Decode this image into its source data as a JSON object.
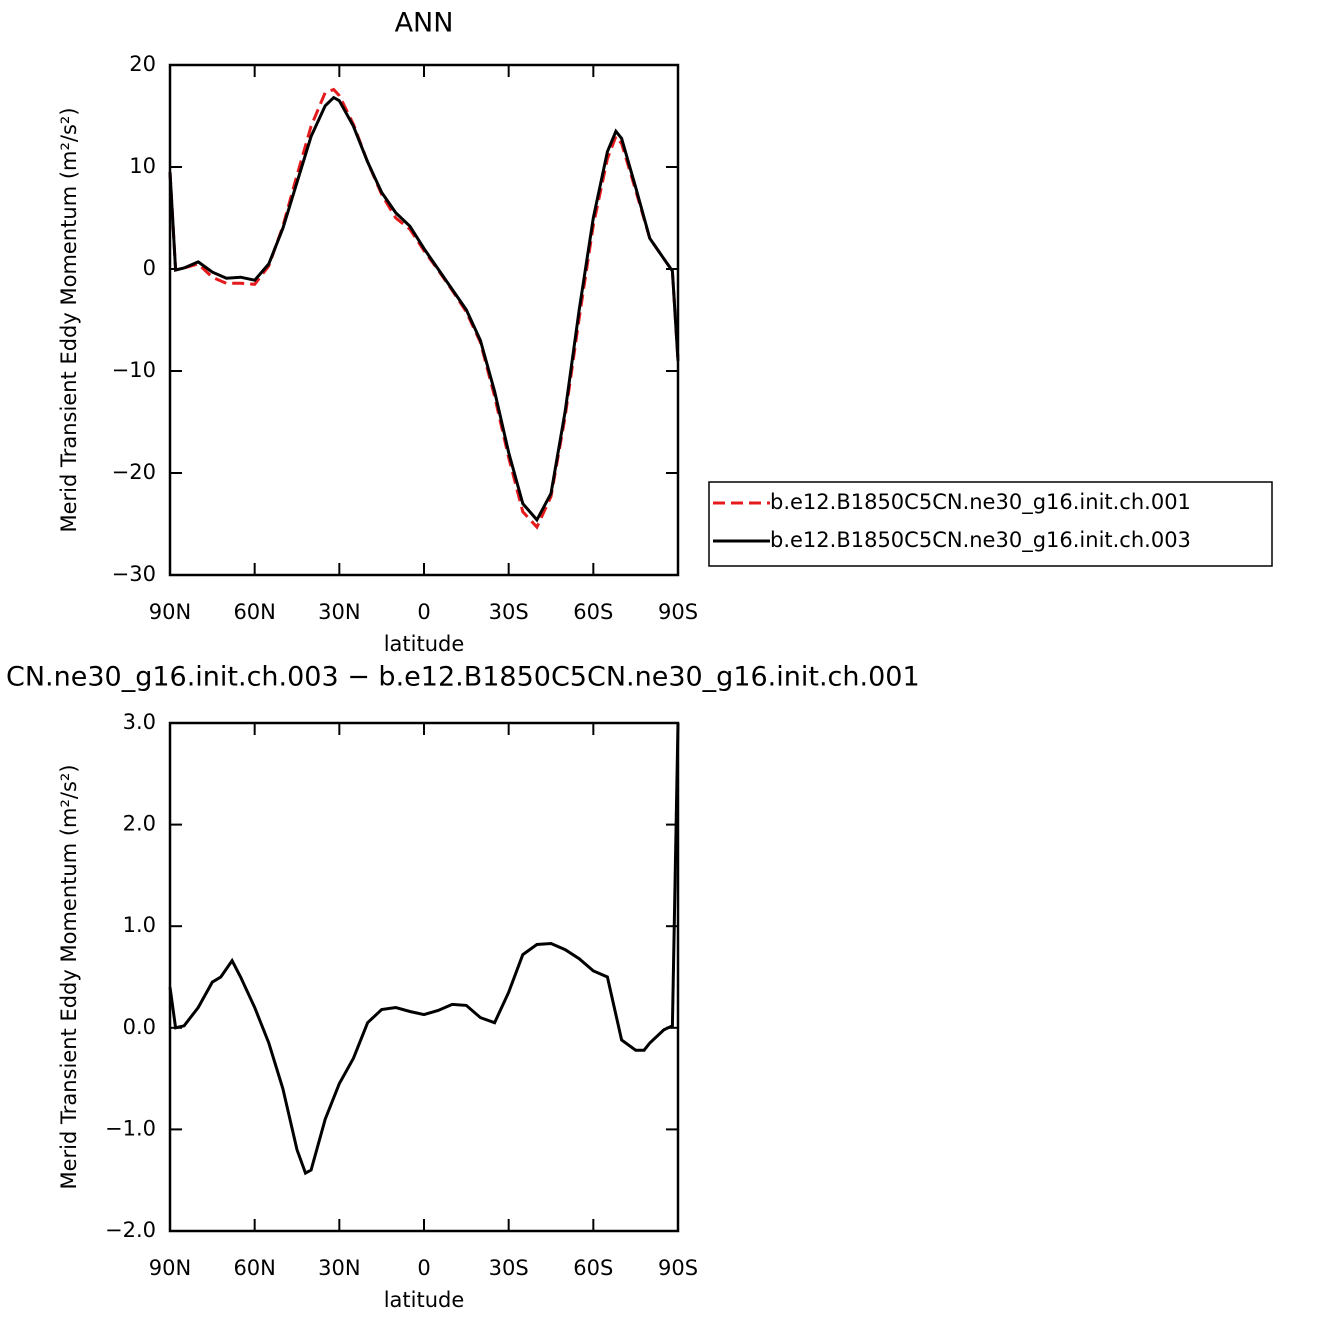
{
  "chart_data": [
    {
      "type": "line",
      "title": "ANN",
      "xlabel": "latitude",
      "ylabel": "Merid Transient Eddy Momentum (m²/s²)",
      "x": [
        90,
        88,
        85,
        80,
        75,
        70,
        65,
        60,
        55,
        50,
        45,
        40,
        35,
        32,
        30,
        25,
        20,
        15,
        10,
        5,
        0,
        -5,
        -10,
        -15,
        -20,
        -25,
        -30,
        -35,
        -40,
        -45,
        -50,
        -55,
        -60,
        -65,
        -68,
        -70,
        -75,
        -80,
        -85,
        -88,
        -90
      ],
      "series": [
        {
          "name": "b.e12.B1850C5CN.ne30_g16.init.ch.001",
          "color": "#e41a1c",
          "dashed": true,
          "values": [
            9.5,
            -0.1,
            0.1,
            0.5,
            -0.8,
            -1.4,
            -1.4,
            -1.5,
            0.3,
            4.2,
            9.2,
            14,
            17.3,
            17.6,
            17,
            14.2,
            10.5,
            7.3,
            5,
            3.9,
            1.8,
            -0.1,
            -2.1,
            -4.2,
            -7.2,
            -12.5,
            -18.5,
            -23.8,
            -25.3,
            -22.3,
            -14.5,
            -4.8,
            4.3,
            10.8,
            13,
            12.3,
            7.7,
            3,
            1,
            -0.2,
            -9
          ]
        },
        {
          "name": "b.e12.B1850C5CN.ne30_g16.init.ch.003",
          "color": "#000000",
          "dashed": false,
          "values": [
            9.5,
            -0.1,
            0.1,
            0.7,
            -0.3,
            -0.9,
            -0.8,
            -1.1,
            0.5,
            4,
            8.5,
            13,
            16,
            16.8,
            16.5,
            14,
            10.5,
            7.5,
            5.5,
            4.2,
            2,
            0,
            -2,
            -4,
            -7,
            -12,
            -18,
            -23,
            -24.6,
            -22,
            -14,
            -4,
            5,
            11.5,
            13.5,
            12.8,
            8,
            3,
            1,
            -0.2,
            -9
          ]
        }
      ],
      "xlim": [
        90,
        -90
      ],
      "ylim": [
        -30,
        20
      ],
      "xticks": [
        {
          "value": 90,
          "label": "90N"
        },
        {
          "value": 60,
          "label": "60N"
        },
        {
          "value": 30,
          "label": "30N"
        },
        0,
        {
          "value": -30,
          "label": "30S"
        },
        {
          "value": -60,
          "label": "60S"
        },
        {
          "value": -90,
          "label": "90S"
        }
      ],
      "yticks": [
        {
          "value": -30,
          "label": "−30"
        },
        {
          "value": -20,
          "label": "−20"
        },
        {
          "value": -10,
          "label": "−10"
        },
        0,
        10,
        20
      ],
      "legend": "right"
    },
    {
      "type": "line",
      "title": "CN.ne30_g16.init.ch.003 − b.e12.B1850C5CN.ne30_g16.init.ch.001",
      "xlabel": "latitude",
      "ylabel": "Merid Transient Eddy Momentum (m²/s²)",
      "x": [
        90,
        88,
        85,
        80,
        75,
        72,
        68,
        65,
        60,
        55,
        50,
        45,
        42,
        40,
        35,
        30,
        25,
        20,
        15,
        10,
        5,
        0,
        -5,
        -10,
        -15,
        -20,
        -25,
        -30,
        -35,
        -40,
        -45,
        -50,
        -55,
        -60,
        -65,
        -70,
        -75,
        -78,
        -80,
        -85,
        -88,
        -90
      ],
      "values": [
        0.4,
        0,
        0.02,
        0.2,
        0.45,
        0.5,
        0.66,
        0.5,
        0.2,
        -0.15,
        -0.6,
        -1.2,
        -1.43,
        -1.4,
        -0.9,
        -0.55,
        -0.3,
        0.05,
        0.18,
        0.2,
        0.16,
        0.13,
        0.17,
        0.23,
        0.22,
        0.1,
        0.05,
        0.35,
        0.72,
        0.82,
        0.83,
        0.77,
        0.68,
        0.56,
        0.5,
        -0.12,
        -0.22,
        -0.22,
        -0.15,
        -0.02,
        0.02,
        3.0
      ],
      "color": "#000000",
      "xlim": [
        90,
        -90
      ],
      "ylim": [
        -2,
        3
      ],
      "xticks": [
        {
          "value": 90,
          "label": "90N"
        },
        {
          "value": 60,
          "label": "60N"
        },
        {
          "value": 30,
          "label": "30N"
        },
        0,
        {
          "value": -30,
          "label": "30S"
        },
        {
          "value": -60,
          "label": "60S"
        },
        {
          "value": -90,
          "label": "90S"
        }
      ],
      "yticks": [
        {
          "value": -2,
          "label": "−2.0"
        },
        {
          "value": -1,
          "label": "−1.0"
        },
        {
          "value": 0,
          "label": "0.0"
        },
        {
          "value": 1,
          "label": "1.0"
        },
        {
          "value": 2,
          "label": "2.0"
        },
        {
          "value": 3,
          "label": "3.0"
        }
      ]
    }
  ]
}
